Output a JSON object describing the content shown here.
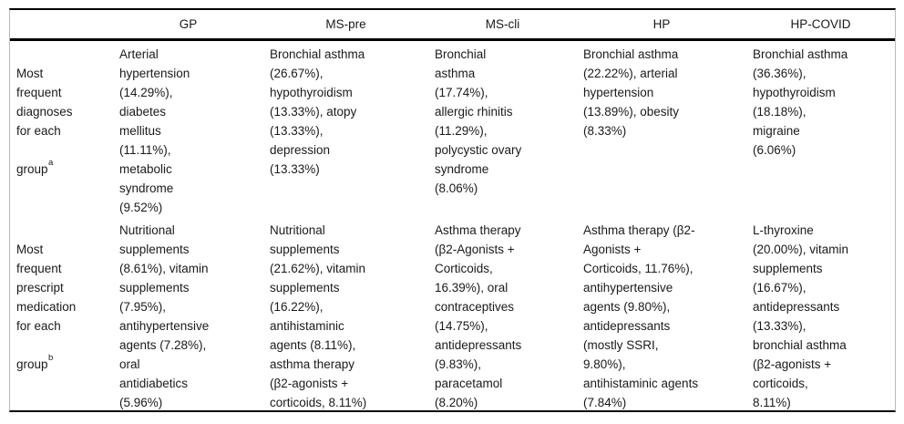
{
  "table": {
    "columns": [
      "GP",
      "MS-pre",
      "MS-cli",
      "HP",
      "HP-COVID"
    ],
    "rows": [
      {
        "label_lines": [
          "Most",
          "frequent",
          "diagnoses",
          "for each"
        ],
        "label_word": "group",
        "footnote_marker": "a",
        "cells": [
          [
            "Arterial",
            "hypertension",
            "(14.29%),",
            "diabetes",
            "mellitus",
            "(11.11%),",
            "metabolic",
            "syndrome",
            "(9.52%)"
          ],
          [
            "Bronchial asthma",
            "(26.67%),",
            "hypothyroidism",
            "(13.33%), atopy",
            "(13.33%),",
            "depression",
            "(13.33%)"
          ],
          [
            "Bronchial",
            "asthma",
            "(17.74%),",
            "allergic rhinitis",
            "(11.29%),",
            "polycystic ovary",
            "syndrome",
            "(8.06%)"
          ],
          [
            "Bronchial asthma",
            "(22.22%), arterial",
            "hypertension",
            "(13.89%), obesity",
            "(8.33%)"
          ],
          [
            "Bronchial asthma",
            "(36.36%),",
            "hypothyroidism",
            "(18.18%),",
            "migraine",
            "(6.06%)"
          ]
        ]
      },
      {
        "label_lines": [
          "Most",
          "frequent",
          "prescript",
          "medication",
          "for each"
        ],
        "label_word": "group",
        "footnote_marker": "b",
        "cells": [
          [
            "Nutritional",
            "supplements",
            "(8.61%), vitamin",
            "supplements",
            "(7.95%),",
            "antihypertensive",
            "agents (7.28%),",
            "oral",
            "antidiabetics",
            "(5.96%)"
          ],
          [
            "Nutritional",
            "supplements",
            "(21.62%), vitamin",
            "supplements",
            "(16.22%),",
            "antihistaminic",
            "agents (8.11%),",
            "asthma therapy",
            "(β2-agonists +",
            "corticoids, 8.11%)"
          ],
          [
            "Asthma therapy",
            "(β2-Agonists +",
            "Corticoids,",
            "16.39%), oral",
            "contraceptives",
            "(14.75%),",
            "antidepressants",
            "(9.83%),",
            "paracetamol",
            "(8.20%)"
          ],
          [
            "Asthma therapy (β2-",
            "Agonists +",
            "Corticoids, 11.76%),",
            "antihypertensive",
            "agents (9.80%),",
            "antidepressants",
            "(mostly SSRI,",
            "9.80%),",
            "antihistaminic agents",
            "(7.84%)"
          ],
          [
            "L-thyroxine",
            "(20.00%), vitamin",
            "supplements",
            "(16.67%),",
            "antidepressants",
            "(13.33%),",
            "bronchial asthma",
            "(β2-agonists +",
            "corticoids,",
            "8.11%)"
          ]
        ]
      }
    ],
    "colors": {
      "rule": "#000000",
      "frame_side": "#b9b9b9",
      "text": "#1a1a1a",
      "background": "#ffffff"
    }
  }
}
